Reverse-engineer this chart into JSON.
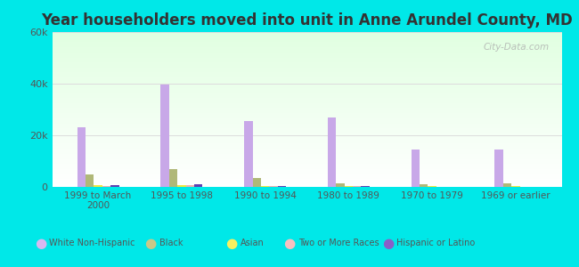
{
  "title": "Year householders moved into unit in Anne Arundel County, MD",
  "categories": [
    "1999 to March\n2000",
    "1995 to 1998",
    "1990 to 1994",
    "1980 to 1989",
    "1970 to 1979",
    "1969 or earlier"
  ],
  "series": {
    "White Non-Hispanic": [
      23000,
      39500,
      25500,
      27000,
      14500,
      14500
    ],
    "Black": [
      5000,
      7000,
      3500,
      1500,
      1000,
      1500
    ],
    "Asian": [
      700,
      700,
      300,
      200,
      200,
      200
    ],
    "Two or More Races": [
      300,
      700,
      200,
      200,
      100,
      100
    ],
    "Hispanic or Latino": [
      800,
      900,
      300,
      200,
      150,
      150
    ]
  },
  "colors": {
    "White Non-Hispanic": "#c8a8e8",
    "Black": "#b0b878",
    "Asian": "#f0e840",
    "Two or More Races": "#f0b0b0",
    "Hispanic or Latino": "#6040b0"
  },
  "legend_colors": {
    "White Non-Hispanic": "#d8b8f0",
    "Black": "#c8c888",
    "Asian": "#f8f060",
    "Two or More Races": "#f8c0c0",
    "Hispanic or Latino": "#8860c8"
  },
  "ylim": [
    0,
    60000
  ],
  "yticks": [
    0,
    20000,
    40000,
    60000
  ],
  "ytick_labels": [
    "0",
    "20k",
    "40k",
    "60k"
  ],
  "outer_background": "#00e8e8",
  "watermark": "City-Data.com",
  "bar_width": 0.1,
  "title_fontsize": 12
}
